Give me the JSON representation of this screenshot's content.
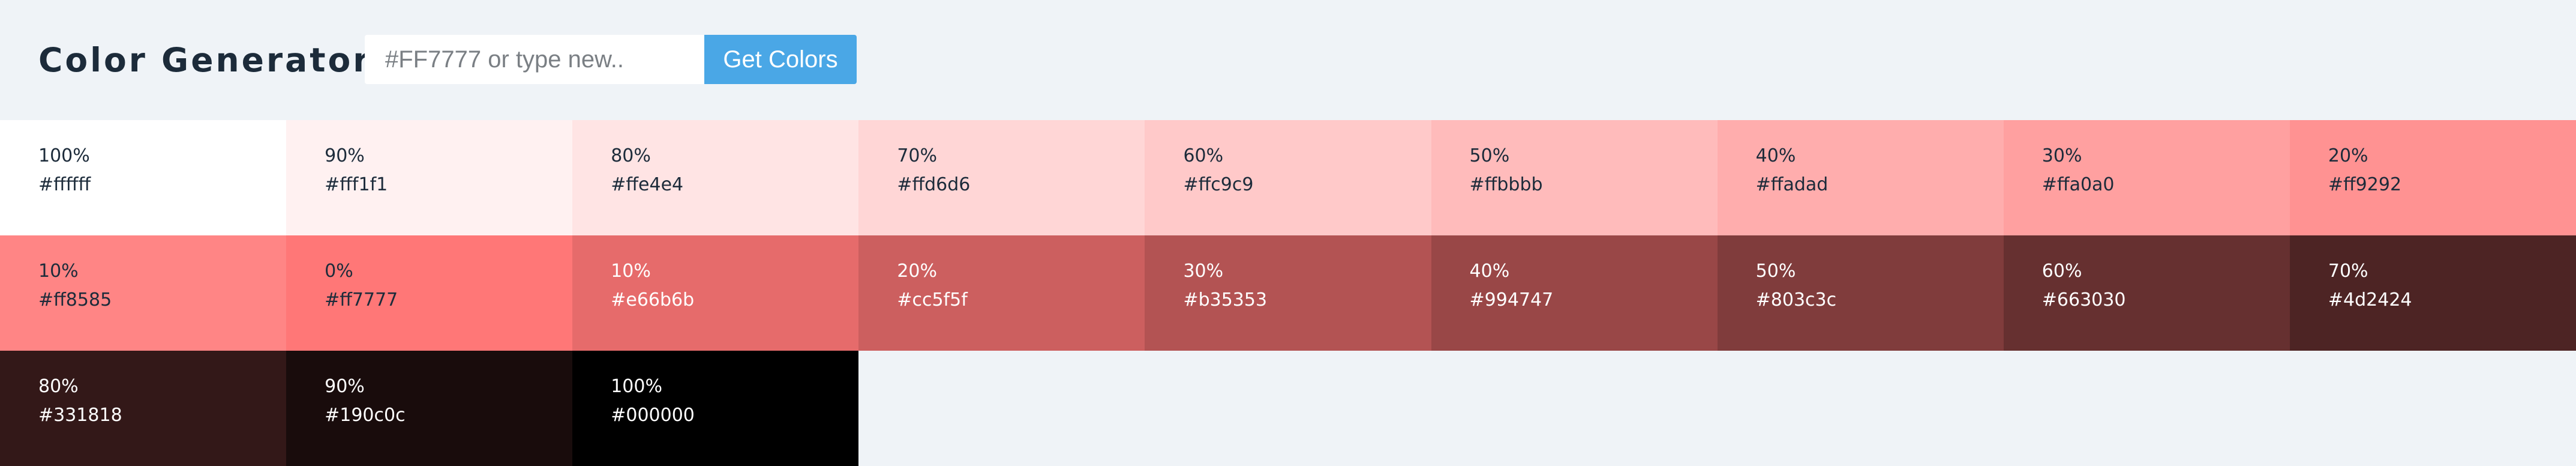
{
  "header": {
    "title": "Color Generator",
    "search_placeholder": "#FF7777 or type new..",
    "button_label": "Get Colors"
  },
  "colors": {
    "dark_text": "#1c2b3a",
    "light_text": "#ffffff",
    "button": "#4aa7e6",
    "page_background": "#eff3f7"
  },
  "swatches": [
    {
      "percent": "100%",
      "hex": "#ffffff",
      "text": "dark"
    },
    {
      "percent": "90%",
      "hex": "#fff1f1",
      "text": "dark"
    },
    {
      "percent": "80%",
      "hex": "#ffe4e4",
      "text": "dark"
    },
    {
      "percent": "70%",
      "hex": "#ffd6d6",
      "text": "dark"
    },
    {
      "percent": "60%",
      "hex": "#ffc9c9",
      "text": "dark"
    },
    {
      "percent": "50%",
      "hex": "#ffbbbb",
      "text": "dark"
    },
    {
      "percent": "40%",
      "hex": "#ffadad",
      "text": "dark"
    },
    {
      "percent": "30%",
      "hex": "#ffa0a0",
      "text": "dark"
    },
    {
      "percent": "20%",
      "hex": "#ff9292",
      "text": "dark"
    },
    {
      "percent": "10%",
      "hex": "#ff8585",
      "text": "dark"
    },
    {
      "percent": "0%",
      "hex": "#ff7777",
      "text": "dark"
    },
    {
      "percent": "10%",
      "hex": "#e66b6b",
      "text": "light"
    },
    {
      "percent": "20%",
      "hex": "#cc5f5f",
      "text": "light"
    },
    {
      "percent": "30%",
      "hex": "#b35353",
      "text": "light"
    },
    {
      "percent": "40%",
      "hex": "#994747",
      "text": "light"
    },
    {
      "percent": "50%",
      "hex": "#803c3c",
      "text": "light"
    },
    {
      "percent": "60%",
      "hex": "#663030",
      "text": "light"
    },
    {
      "percent": "70%",
      "hex": "#4d2424",
      "text": "light"
    },
    {
      "percent": "80%",
      "hex": "#331818",
      "text": "light"
    },
    {
      "percent": "90%",
      "hex": "#190c0c",
      "text": "light"
    },
    {
      "percent": "100%",
      "hex": "#000000",
      "text": "light"
    }
  ]
}
